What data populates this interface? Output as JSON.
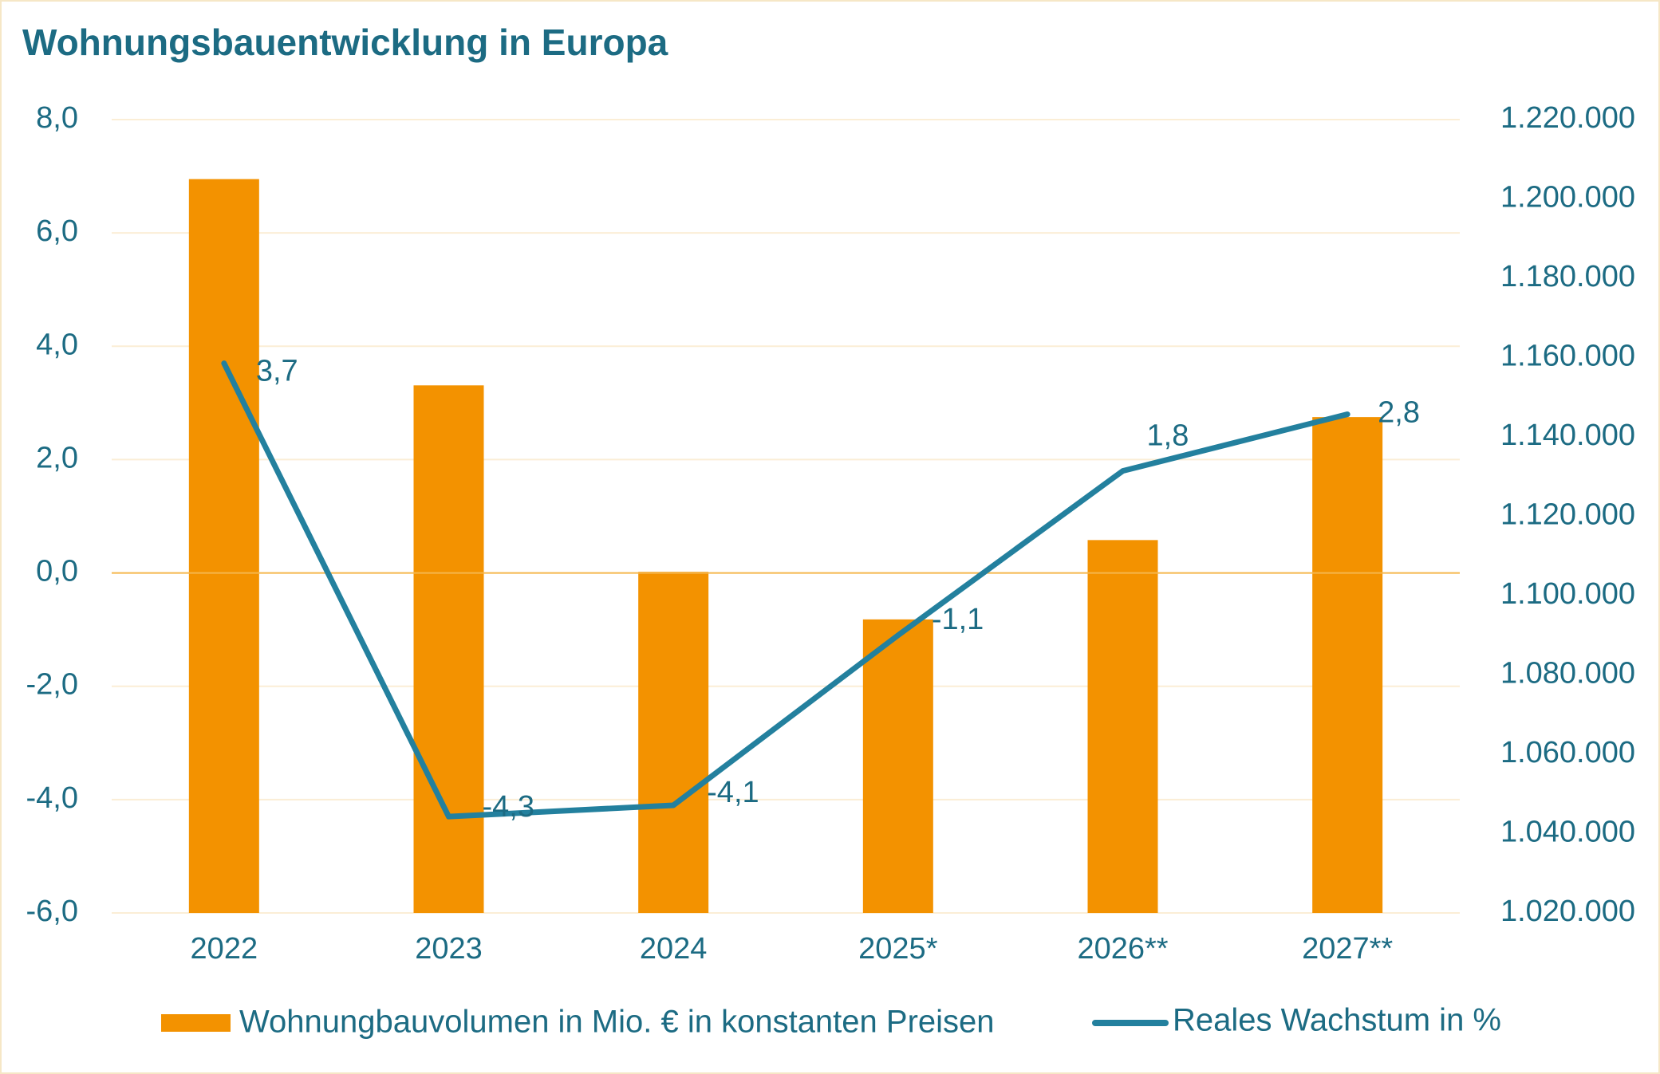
{
  "colors": {
    "title": "#1c6b83",
    "text": "#1c6b83",
    "bar": "#f39200",
    "line": "#23809e",
    "grid": "#fbeed6",
    "zero": "#f5b64c"
  },
  "chart_data": {
    "type": "bar",
    "title": "Wohnungsbauentwicklung in Europa",
    "categories": [
      "2022",
      "2023",
      "2024",
      "2025*",
      "2026**",
      "2027**"
    ],
    "series": [
      {
        "name": "Wohnungbauvolumen in Mio. € in konstanten Preisen",
        "type": "bar",
        "axis": "right",
        "values": [
          1205000,
          1153000,
          1106000,
          1094000,
          1114000,
          1145000
        ]
      },
      {
        "name": "Reales Wachstum in %",
        "type": "line",
        "axis": "left",
        "values": [
          3.7,
          -4.3,
          -4.1,
          -1.1,
          1.8,
          2.8
        ],
        "labels": [
          "3,7",
          "-4,3",
          "-4,1",
          "-1,1",
          "1,8",
          "2,8"
        ]
      }
    ],
    "y_left": {
      "min": -6,
      "max": 8,
      "ticks": [
        8,
        6,
        4,
        2,
        0,
        -2,
        -4,
        -6
      ],
      "tick_labels": [
        "8,0",
        "6,0",
        "4,0",
        "2,0",
        "0,0",
        "-2,0",
        "-4,0",
        "-6,0"
      ]
    },
    "y_right": {
      "min": 1020000,
      "max": 1220000,
      "ticks": [
        1220000,
        1200000,
        1180000,
        1160000,
        1140000,
        1120000,
        1100000,
        1080000,
        1060000,
        1040000,
        1020000
      ],
      "tick_labels": [
        "1.220.000",
        "1.200.000",
        "1.180.000",
        "1.160.000",
        "1.140.000",
        "1.120.000",
        "1.100.000",
        "1.080.000",
        "1.060.000",
        "1.040.000",
        "1.020.000"
      ]
    },
    "grid": true,
    "legend": "bottom"
  }
}
